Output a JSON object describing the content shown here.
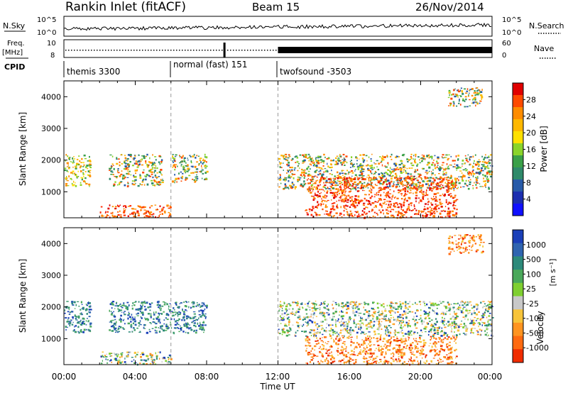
{
  "header": {
    "station": "Rankin Inlet (fitACF)",
    "beam": "Beam 15",
    "date": "26/Nov/2014"
  },
  "noise_panel": {
    "left_label": "N.Sky",
    "right_label": "N.Search",
    "left_ticks": [
      "10^5",
      "10^0"
    ],
    "right_ticks": [
      "10^5",
      "10^0"
    ]
  },
  "freq_panel": {
    "left_label_line1": "Freq.",
    "left_label_line2": "[MHz]",
    "left_ticks": [
      "10",
      "8"
    ],
    "right_label": "Nave",
    "right_ticks": [
      "60",
      "0"
    ],
    "cpid_label": "CPID",
    "cpid_segments": [
      {
        "text": "themis 3300",
        "start_hour": 0,
        "end_hour": 6
      },
      {
        "text": "normal (fast) 151",
        "start_hour": 6,
        "end_hour": 12
      },
      {
        "text": "twofsound -3503",
        "start_hour": 12,
        "end_hour": 24
      }
    ]
  },
  "x_axis": {
    "title": "Time UT",
    "ticks": [
      "00:00",
      "04:00",
      "08:00",
      "12:00",
      "16:00",
      "20:00",
      "00:00"
    ]
  },
  "power_panel": {
    "ylabel": "Slant Range [km]",
    "cbar_label": "Power [dB]",
    "cbar_ticks": [
      "28",
      "24",
      "20",
      "16",
      "12",
      "8",
      "4"
    ],
    "cbar_colors": [
      "#e00000",
      "#ff4a00",
      "#ff8c00",
      "#ffb800",
      "#ffe000",
      "#8ad42a",
      "#3aa048",
      "#2f8a6a",
      "#275aa8",
      "#1b2eb0",
      "#1010ff"
    ]
  },
  "velocity_panel": {
    "ylabel": "Slant Range [km]",
    "cbar_label_main": "Velocity",
    "cbar_label_units": "[m s⁻¹]",
    "cbar_ticks": [
      "1000",
      "500",
      "100",
      "25",
      "-25",
      "-100",
      "-500",
      "-1000"
    ],
    "cbar_colors": [
      "#1a3fb8",
      "#2f64b0",
      "#2d8a7a",
      "#4aa85a",
      "#7fcf30",
      "#c8c8c8",
      "#f7c43a",
      "#ff9420",
      "#ff6a10",
      "#f02c00"
    ]
  },
  "chart_data": {
    "type": "heatmap",
    "title": "Rankin Inlet (fitACF)",
    "subtitle": "Beam 15",
    "xlabel": "Time UT",
    "ylabel": "Slant Range [km]",
    "xlim_hours": [
      0,
      24
    ],
    "ylim_km": [
      180,
      4500
    ],
    "yticks_km": [
      1000,
      2000,
      3000,
      4000
    ],
    "dashed_lines_hours": [
      6,
      12
    ],
    "power_regions": [
      {
        "t0": 0.0,
        "t1": 1.5,
        "r0": 1200,
        "r1": 2200,
        "level": "mid"
      },
      {
        "t0": 2.5,
        "t1": 5.5,
        "r0": 1200,
        "r1": 2200,
        "level": "mixed"
      },
      {
        "t0": 6.0,
        "t1": 8.0,
        "r0": 1300,
        "r1": 2200,
        "level": "mixed"
      },
      {
        "t0": 2.0,
        "t1": 6.0,
        "r0": 200,
        "r1": 600,
        "level": "high"
      },
      {
        "t0": 12.0,
        "t1": 24.0,
        "r0": 1100,
        "r1": 2200,
        "level": "mixed"
      },
      {
        "t0": 13.5,
        "t1": 22.0,
        "r0": 200,
        "r1": 1500,
        "level": "high"
      },
      {
        "t0": 21.5,
        "t1": 23.5,
        "r0": 3700,
        "r1": 4300,
        "level": "mixed"
      }
    ],
    "velocity_regions": [
      {
        "t0": 0.0,
        "t1": 1.5,
        "r0": 1200,
        "r1": 2200,
        "level": "positive"
      },
      {
        "t0": 2.5,
        "t1": 8.0,
        "r0": 1200,
        "r1": 2200,
        "level": "positive"
      },
      {
        "t0": 2.0,
        "t1": 6.0,
        "r0": 200,
        "r1": 600,
        "level": "mixed"
      },
      {
        "t0": 12.0,
        "t1": 24.0,
        "r0": 1100,
        "r1": 2200,
        "level": "mixed"
      },
      {
        "t0": 13.5,
        "t1": 22.0,
        "r0": 200,
        "r1": 1100,
        "level": "negative"
      },
      {
        "t0": 21.5,
        "t1": 23.5,
        "r0": 3700,
        "r1": 4300,
        "level": "negative"
      }
    ],
    "colorbar_power_ticks": [
      28,
      24,
      20,
      16,
      12,
      8,
      4
    ],
    "colorbar_velocity_ticks": [
      1000,
      500,
      100,
      25,
      -25,
      -100,
      -500,
      -1000
    ]
  }
}
